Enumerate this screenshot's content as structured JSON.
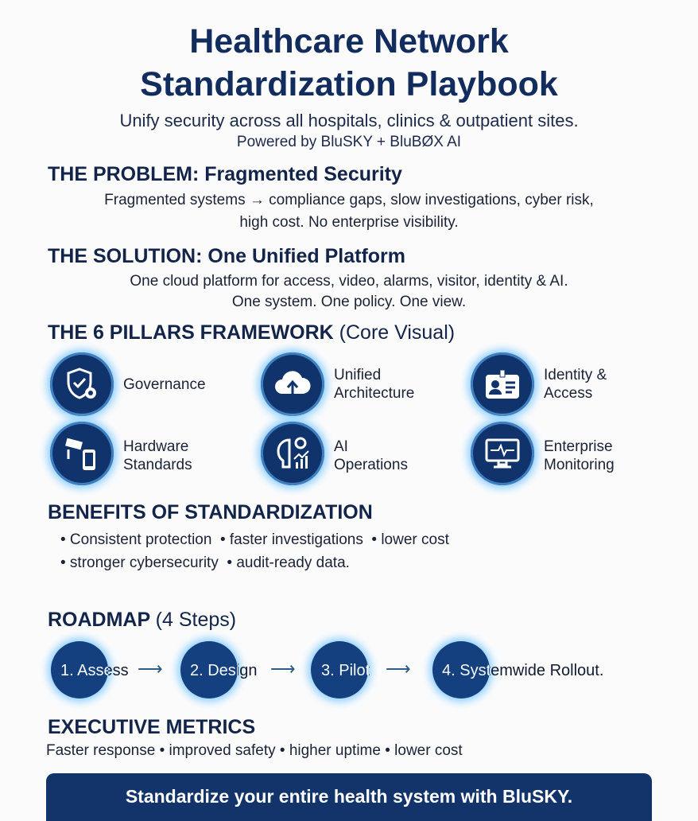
{
  "header": {
    "title_line1": "Healthcare Network",
    "title_line2": "Standardization Playbook",
    "subtitle": "Unify security across all hospitals, clinics & outpatient sites.",
    "powered_by": "Powered by BluSKY + BluBØX AI"
  },
  "problem": {
    "heading": "THE PROBLEM: Fragmented Security",
    "line1": "Fragmented systems → compliance gaps, slow investigations, cyber risk,",
    "line2": "high cost. No enterprise visibility."
  },
  "solution": {
    "heading": "THE SOLUTION: One Unified Platform",
    "line1": "One cloud platform for access, video, alarms, visitor, identity & AI.",
    "line2": "One system. One policy. One view."
  },
  "pillars": {
    "heading": "THE 6 PILLARS FRAMEWORK",
    "heading_note": "(Core Visual)",
    "items": [
      {
        "line1": "Governance",
        "line2": "",
        "icon": "shield-gear-icon"
      },
      {
        "line1": "Unified",
        "line2": "Architecture",
        "icon": "cloud-upload-icon"
      },
      {
        "line1": "Identity &",
        "line2": "Access",
        "icon": "id-badge-icon"
      },
      {
        "line1": "Hardware",
        "line2": "Standards",
        "icon": "camera-phone-icon"
      },
      {
        "line1": "AI",
        "line2": "Operations",
        "icon": "brain-chart-icon"
      },
      {
        "line1": "Enterprise",
        "line2": "Monitoring",
        "icon": "monitor-pulse-icon"
      }
    ]
  },
  "benefits": {
    "heading": "BENEFITS OF STANDARDIZATION",
    "line1": "• Consistent protection  • faster investigations  • lower cost",
    "line2": "• stronger cybersecurity  • audit-ready data."
  },
  "roadmap": {
    "heading": "ROADMAP",
    "heading_note": "(4 Steps)",
    "steps": [
      "1. Assess",
      "2. Design",
      "3. Pilot",
      "4. Systemwide Rollout."
    ],
    "arrow": "⟶"
  },
  "metrics": {
    "heading": "EXECUTIVE METRICS",
    "line": "Faster response • improved safety • higher uptime • lower cost"
  },
  "cta": {
    "label": "Standardize your entire health system with BluSKY."
  },
  "colors": {
    "navy": "#122c5e",
    "circle": "#10336b",
    "glow": "#8fd0ff"
  }
}
